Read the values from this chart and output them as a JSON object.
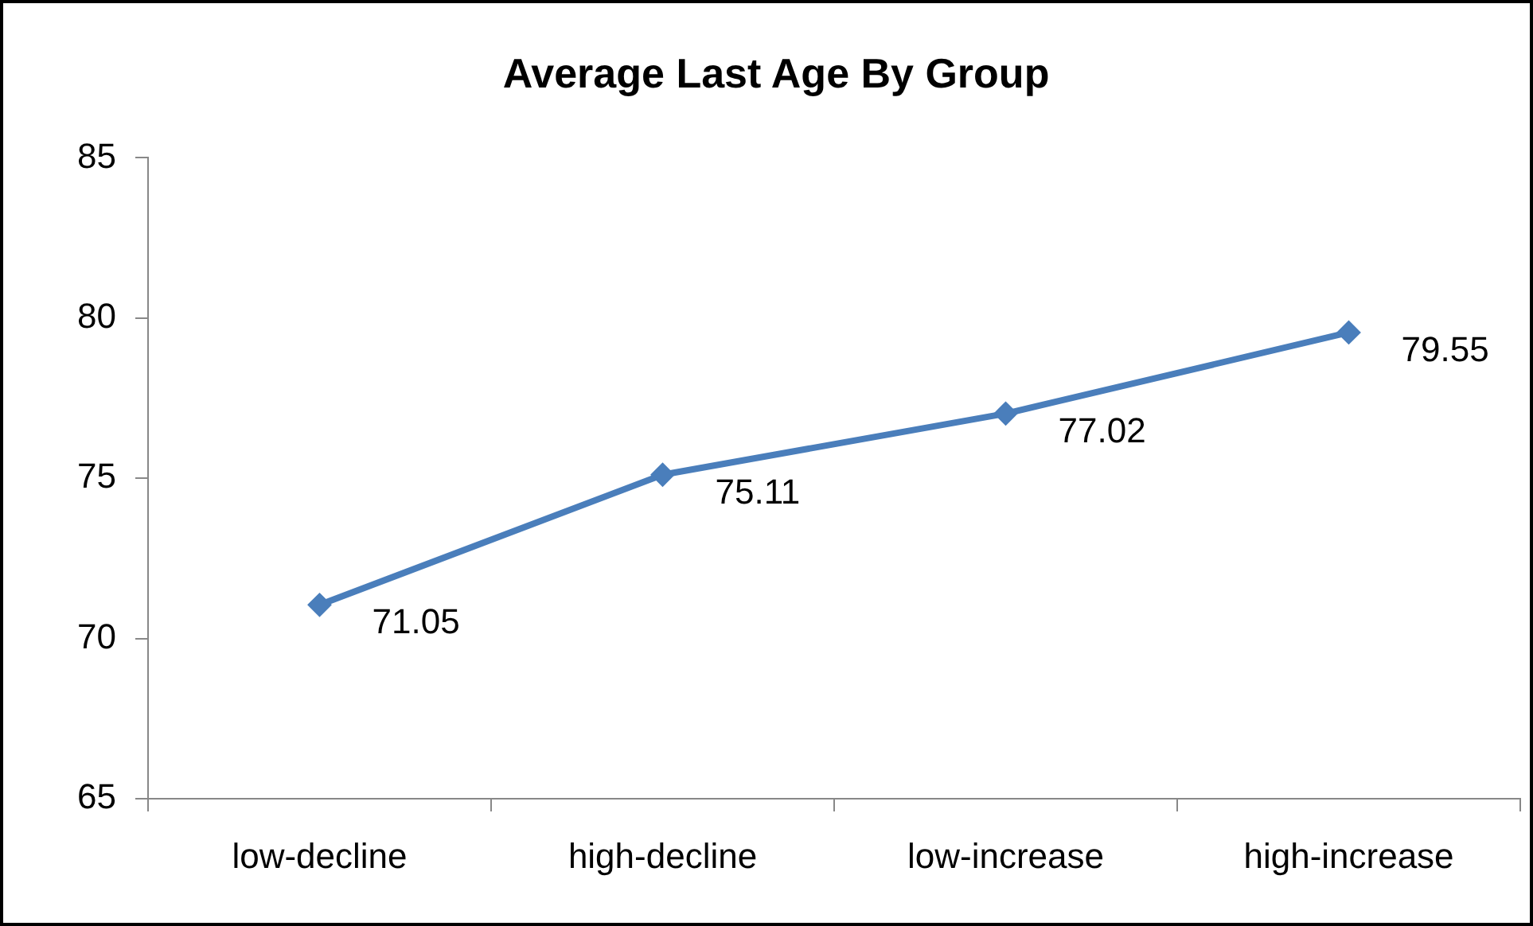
{
  "chart_data": {
    "type": "line",
    "title": "Average Last Age By Group",
    "categories": [
      "low-decline",
      "high-decline",
      "low-increase",
      "high-increase"
    ],
    "series": [
      {
        "color": "#4a7ebb",
        "values": [
          71.05,
          75.11,
          77.02,
          79.55
        ]
      }
    ],
    "ylim": [
      65,
      85
    ],
    "yticks": [
      65,
      70,
      75,
      80,
      85
    ],
    "grid": false,
    "legend": false,
    "marker": "diamond",
    "line_style": "solid",
    "data_labels": true
  }
}
